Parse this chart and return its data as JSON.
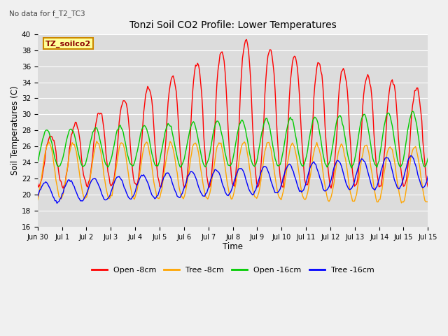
{
  "title": "Tonzi Soil CO2 Profile: Lower Temperatures",
  "subtitle": "No data for f_T2_TC3",
  "xlabel": "Time",
  "ylabel": "Soil Temperatures (C)",
  "ylim": [
    16,
    40
  ],
  "yticks": [
    16,
    18,
    20,
    22,
    24,
    26,
    28,
    30,
    32,
    34,
    36,
    38,
    40
  ],
  "colors": {
    "open_8cm": "#ff0000",
    "tree_8cm": "#ffa500",
    "open_16cm": "#00cc00",
    "tree_16cm": "#0000ff"
  },
  "legend_labels": [
    "Open -8cm",
    "Tree -8cm",
    "Open -16cm",
    "Tree -16cm"
  ],
  "annotation_box": "TZ_soilco2",
  "annotation_box_bg": "#ffff99",
  "annotation_box_edge": "#cc8800",
  "n_days": 16,
  "figsize": [
    6.4,
    4.8
  ],
  "dpi": 100
}
